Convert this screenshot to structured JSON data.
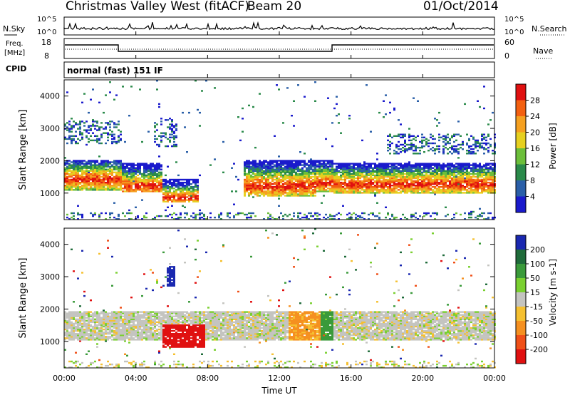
{
  "header": {
    "station": "Christmas Valley West (fitACF)",
    "beam": "Beam 20",
    "date": "01/Oct/2014"
  },
  "noise_panel": {
    "left_label": "N.Sky",
    "right_label": "N.Search",
    "left_ticks": [
      "10^5",
      "10^0"
    ],
    "right_ticks": [
      "10^5",
      "10^0"
    ]
  },
  "freq_panel": {
    "left_label_1": "Freq.",
    "left_label_2": "[MHz]",
    "left_ticks": [
      "18",
      "8"
    ],
    "right_label": "Nave",
    "right_ticks": [
      "60",
      "0"
    ]
  },
  "cpid": {
    "label": "CPID",
    "value": "normal (fast) 151 IF"
  },
  "colors": {
    "power": [
      "#1a1acc",
      "#2a5fa8",
      "#2a8a4a",
      "#6cbf3a",
      "#e6d020",
      "#f5a020",
      "#f36010",
      "#e01010"
    ],
    "velocity": [
      "#1a28b0",
      "#1f6b3a",
      "#3a9a3a",
      "#7ad030",
      "#c4c4c0",
      "#f5c030",
      "#f59020",
      "#f05018",
      "#e01010"
    ]
  },
  "chart_data": [
    {
      "type": "heatmap",
      "name": "power",
      "ylabel": "Slant Range [km]",
      "yticks": [
        "1000",
        "2000",
        "3000",
        "4000"
      ],
      "colorbar_label": "Power [dB]",
      "colorbar_ticks": [
        "4",
        "8",
        "12",
        "16",
        "20",
        "24",
        "28"
      ],
      "ylim": [
        180,
        4500
      ],
      "clim": [
        0,
        32
      ],
      "bands": [
        {
          "t": [
            0.0,
            3.1
          ],
          "low": 1050,
          "high": 2000,
          "core": 1400
        },
        {
          "t": [
            3.1,
            5.4
          ],
          "low": 1000,
          "high": 1900,
          "core": 1200
        },
        {
          "t": [
            5.4,
            7.5
          ],
          "low": 700,
          "high": 1400,
          "core": 850
        },
        {
          "t": [
            10.0,
            14.0
          ],
          "low": 900,
          "high": 2000,
          "core": 1200
        },
        {
          "t": [
            14.0,
            15.0
          ],
          "low": 1000,
          "high": 2000,
          "core": 1300
        },
        {
          "t": [
            15.0,
            24.0
          ],
          "low": 950,
          "high": 1900,
          "core": 1250
        }
      ],
      "upper_echoes": [
        {
          "t": [
            0.0,
            3.1
          ],
          "low": 2500,
          "high": 3200
        },
        {
          "t": [
            5.0,
            6.2
          ],
          "low": 2400,
          "high": 3300
        },
        {
          "t": [
            18.0,
            24.0
          ],
          "low": 2200,
          "high": 2800
        }
      ]
    },
    {
      "type": "heatmap",
      "name": "velocity",
      "ylabel": "Slant Range [km]",
      "yticks": [
        "1000",
        "2000",
        "3000",
        "4000"
      ],
      "colorbar_label": "Velocity [m s-1]",
      "colorbar_ticks": [
        "200",
        "100",
        "50",
        "15",
        "-15",
        "-50",
        "-100",
        "-200"
      ],
      "ylim": [
        180,
        4500
      ],
      "clim": [
        -250,
        250
      ],
      "regions": [
        {
          "t": [
            0.0,
            24.0
          ],
          "low": 1000,
          "high": 1900,
          "v": 0
        },
        {
          "t": [
            5.4,
            7.8
          ],
          "low": 800,
          "high": 1500,
          "v": -180
        },
        {
          "t": [
            5.7,
            6.1
          ],
          "low": 2700,
          "high": 3300,
          "v": 220
        },
        {
          "t": [
            12.5,
            14.2
          ],
          "low": 1000,
          "high": 1900,
          "v": -60
        },
        {
          "t": [
            14.2,
            15.0
          ],
          "low": 1000,
          "high": 1900,
          "v": 50
        }
      ]
    }
  ],
  "xaxis": {
    "label": "Time UT",
    "ticks": [
      "00:00",
      "04:00",
      "08:00",
      "12:00",
      "16:00",
      "20:00",
      "00:00"
    ]
  }
}
